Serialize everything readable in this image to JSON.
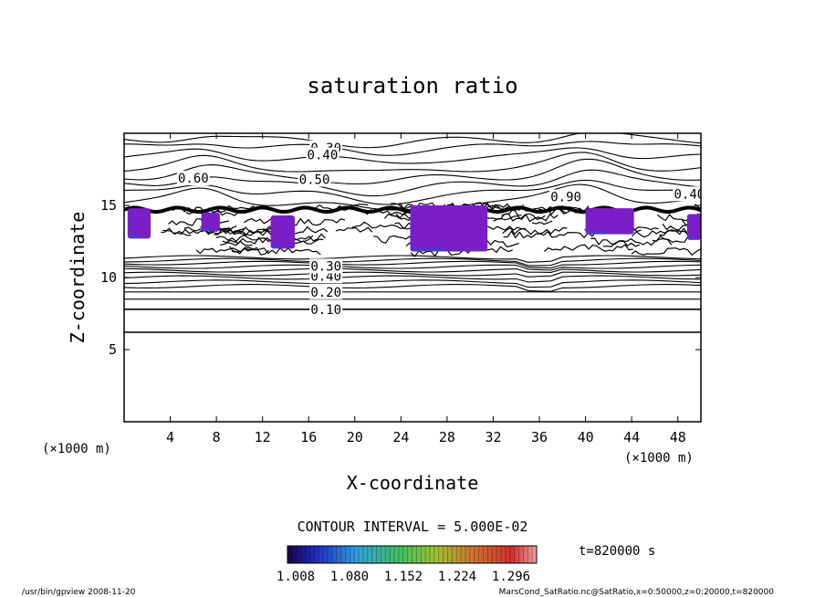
{
  "chart_data": {
    "type": "contour",
    "title": "saturation ratio",
    "xlabel": "X-coordinate",
    "ylabel": "Z-coordinate",
    "x_unit": "(×1000 m)",
    "y_unit": "(×1000 m)",
    "xlim": [
      0,
      50
    ],
    "ylim": [
      0,
      20
    ],
    "x_ticks": [
      4,
      8,
      12,
      16,
      20,
      24,
      28,
      32,
      36,
      40,
      44,
      48
    ],
    "y_ticks": [
      5,
      10,
      15
    ],
    "contour_interval_label": "CONTOUR INTERVAL = 5.000E-02",
    "time_label": "t=820000 s",
    "colorbar_labels": [
      "1.008",
      "1.080",
      "1.152",
      "1.224",
      "1.296"
    ],
    "colorbar_range": [
      1.008,
      1.296
    ],
    "contour_labels": [
      {
        "text": "0.30",
        "x": 17.5,
        "z": 19.0
      },
      {
        "text": "0.40",
        "x": 17.2,
        "z": 18.5
      },
      {
        "text": "0.50",
        "x": 16.5,
        "z": 16.8
      },
      {
        "text": "0.60",
        "x": 6.0,
        "z": 16.9
      },
      {
        "text": "0.40",
        "x": 49.0,
        "z": 15.8
      },
      {
        "text": "0.90",
        "x": 38.3,
        "z": 15.6
      },
      {
        "text": "0.10",
        "x": 17.5,
        "z": 7.8
      },
      {
        "text": "0.20",
        "x": 17.5,
        "z": 9.0
      },
      {
        "text": "0.40",
        "x": 17.5,
        "z": 10.1
      },
      {
        "text": "0.30",
        "x": 17.5,
        "z": 10.8
      }
    ],
    "supersaturated_regions": [
      {
        "x": [
          0.3,
          2.3
        ],
        "z": [
          12.7,
          14.8
        ]
      },
      {
        "x": [
          6.7,
          8.3
        ],
        "z": [
          13.2,
          14.5
        ]
      },
      {
        "x": [
          12.7,
          14.8
        ],
        "z": [
          12.0,
          14.3
        ]
      },
      {
        "x": [
          24.8,
          31.5
        ],
        "z": [
          11.8,
          15.0
        ]
      },
      {
        "x": [
          40.0,
          44.2
        ],
        "z": [
          13.0,
          14.8
        ]
      },
      {
        "x": [
          48.8,
          50.0
        ],
        "z": [
          12.6,
          14.4
        ]
      }
    ],
    "colors": {
      "contour": "#000000",
      "supersaturation": "#7a1fc8",
      "low_tail": "#2a4ad8"
    }
  },
  "footer": {
    "left": "/usr/bin/gpview  2008-11-20",
    "right": "MarsCond_SatRatio.nc@SatRatio,x=0:50000,z=0:20000,t=820000"
  }
}
